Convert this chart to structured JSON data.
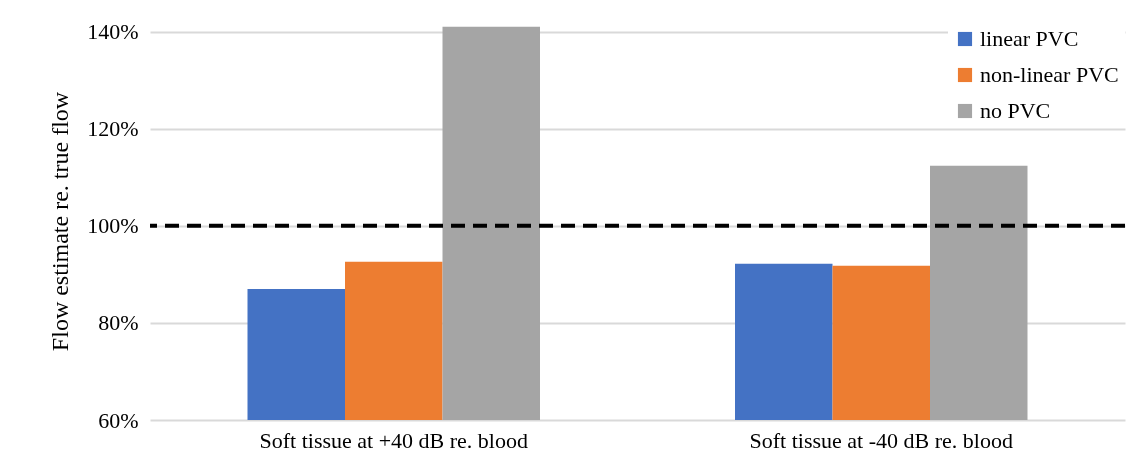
{
  "chart_data": {
    "type": "bar",
    "ylabel": "Flow estimate re. true flow",
    "categories": [
      "Soft tissue at +40 dB re. blood",
      "Soft tissue at -40 dB re. blood"
    ],
    "series": [
      {
        "name": "linear PVC",
        "color": "#4472c4",
        "values": [
          87,
          92.2
        ]
      },
      {
        "name": "non-linear PVC",
        "color": "#ed7d31",
        "values": [
          92.6,
          91.8
        ]
      },
      {
        "name": "no PVC",
        "color": "#a5a5a5",
        "values": [
          141,
          112.4
        ]
      }
    ],
    "ylim": [
      60,
      142
    ],
    "yticks": [
      {
        "value": 60,
        "label": "60%"
      },
      {
        "value": 80,
        "label": "80%"
      },
      {
        "value": 100,
        "label": "100%"
      },
      {
        "value": 120,
        "label": "120%"
      },
      {
        "value": 140,
        "label": "140%"
      }
    ],
    "grid": "y",
    "legend": "top right",
    "ref_lines": [
      {
        "axis": "y",
        "value": 100,
        "color": "#000000",
        "line_style": "dashed"
      }
    ]
  }
}
